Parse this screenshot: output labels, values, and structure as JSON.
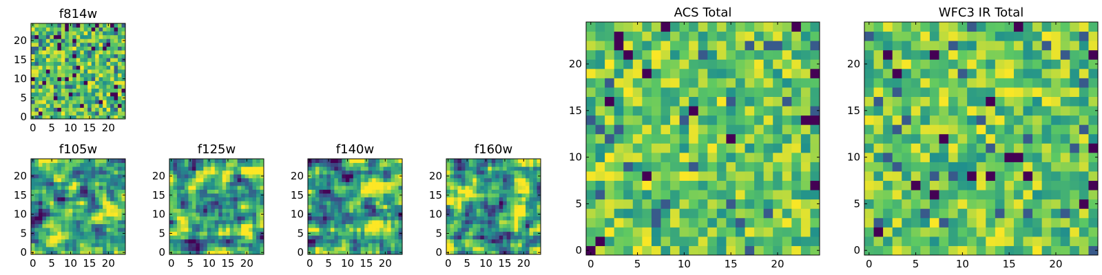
{
  "figure_title": "",
  "colormap": [
    "#440154",
    "#3b528b",
    "#21918c",
    "#5ec962",
    "#fde725"
  ],
  "chart_data": [
    {
      "type": "heatmap",
      "title": "f814w",
      "grid": [
        25,
        25
      ],
      "seed": 814,
      "x_ticks": [
        "0",
        "5",
        "10",
        "15",
        "20"
      ],
      "y_ticks": [
        "0",
        "5",
        "10",
        "15",
        "20"
      ],
      "xlim": [
        0,
        25
      ],
      "ylim": [
        0,
        25
      ],
      "xlabel": "",
      "ylabel": "",
      "style": "noise"
    },
    {
      "type": "heatmap",
      "title": "f105w",
      "grid": [
        25,
        25
      ],
      "seed": 105,
      "x_ticks": [
        "0",
        "5",
        "10",
        "15",
        "20"
      ],
      "y_ticks": [
        "0",
        "5",
        "10",
        "15",
        "20"
      ],
      "xlim": [
        0,
        25
      ],
      "ylim": [
        0,
        25
      ],
      "xlabel": "",
      "ylabel": "",
      "style": "smooth"
    },
    {
      "type": "heatmap",
      "title": "f125w",
      "grid": [
        25,
        25
      ],
      "seed": 125,
      "x_ticks": [
        "0",
        "5",
        "10",
        "15",
        "20"
      ],
      "y_ticks": [
        "0",
        "5",
        "10",
        "15",
        "20"
      ],
      "xlim": [
        0,
        25
      ],
      "ylim": [
        0,
        25
      ],
      "xlabel": "",
      "ylabel": "",
      "style": "smooth"
    },
    {
      "type": "heatmap",
      "title": "f140w",
      "grid": [
        25,
        25
      ],
      "seed": 140,
      "x_ticks": [
        "0",
        "5",
        "10",
        "15",
        "20"
      ],
      "y_ticks": [
        "0",
        "5",
        "10",
        "15",
        "20"
      ],
      "xlim": [
        0,
        25
      ],
      "ylim": [
        0,
        25
      ],
      "xlabel": "",
      "ylabel": "",
      "style": "smooth"
    },
    {
      "type": "heatmap",
      "title": "f160w",
      "grid": [
        25,
        25
      ],
      "seed": 160,
      "x_ticks": [
        "0",
        "5",
        "10",
        "15",
        "20"
      ],
      "y_ticks": [
        "0",
        "5",
        "10",
        "15",
        "20"
      ],
      "xlim": [
        0,
        25
      ],
      "ylim": [
        0,
        25
      ],
      "xlabel": "",
      "ylabel": "",
      "style": "smooth"
    },
    {
      "type": "heatmap",
      "title": "ACS Total",
      "grid": [
        25,
        25
      ],
      "seed": 2024,
      "x_ticks": [
        "0",
        "5",
        "10",
        "15",
        "20"
      ],
      "y_ticks": [
        "0",
        "5",
        "10",
        "15",
        "20"
      ],
      "xlim": [
        0,
        25
      ],
      "ylim": [
        0,
        25
      ],
      "xlabel": "",
      "ylabel": "",
      "style": "blocky"
    },
    {
      "type": "heatmap",
      "title": "WFC3 IR Total",
      "grid": [
        25,
        25
      ],
      "seed": 3033,
      "x_ticks": [
        "0",
        "5",
        "10",
        "15",
        "20"
      ],
      "y_ticks": [
        "0",
        "5",
        "10",
        "15",
        "20"
      ],
      "xlim": [
        0,
        25
      ],
      "ylim": [
        0,
        25
      ],
      "xlabel": "",
      "ylabel": "",
      "style": "blocky"
    }
  ]
}
